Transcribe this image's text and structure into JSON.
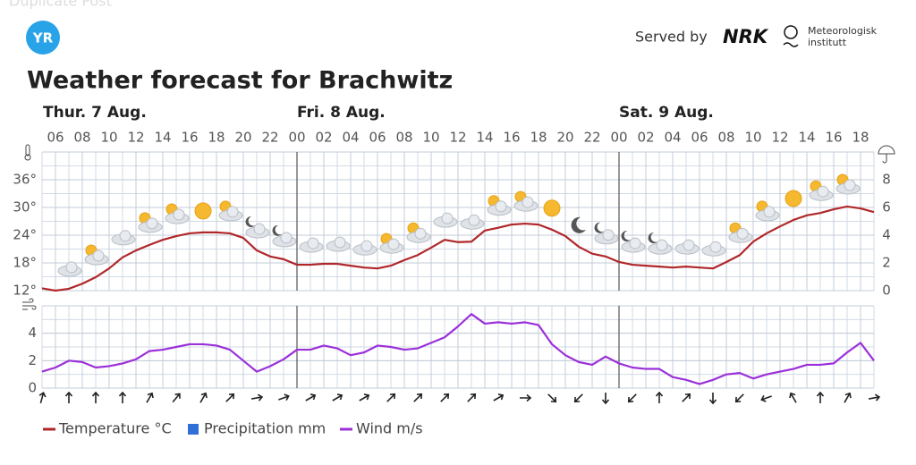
{
  "header": {
    "overlay": "Duplicate Post",
    "logo": "YR",
    "served_by": "Served by",
    "nrk": "NRK",
    "met_line1": "Meteorologisk",
    "met_line2": "institutt"
  },
  "chart_data": [
    {
      "type": "line",
      "title": "Weather forecast for Brachwitz",
      "days": [
        "Thur. 7 Aug.",
        "Fri. 8 Aug.",
        "Sat. 9 Aug."
      ],
      "day_starts": [
        24,
        48
      ],
      "x": [
        5,
        6,
        7,
        8,
        9,
        10,
        11,
        12,
        13,
        14,
        15,
        16,
        17,
        18,
        19,
        20,
        21,
        22,
        23,
        24,
        25,
        26,
        27,
        28,
        29,
        30,
        31,
        32,
        33,
        34,
        35,
        36,
        37,
        38,
        39,
        40,
        41,
        42,
        43,
        44,
        45,
        46,
        47,
        48,
        49,
        50,
        51,
        52,
        53,
        54,
        55,
        56,
        57,
        58,
        59,
        60,
        61,
        62,
        63,
        64,
        65,
        66,
        67
      ],
      "xlim": [
        5,
        67
      ],
      "xticks": [
        {
          "value": 6,
          "label": "06"
        },
        {
          "value": 8,
          "label": "08"
        },
        10,
        12,
        14,
        16,
        18,
        20,
        22,
        {
          "value": 24,
          "label": "00"
        },
        {
          "value": 26,
          "label": "02"
        },
        {
          "value": 28,
          "label": "04"
        },
        {
          "value": 30,
          "label": "06"
        },
        {
          "value": 32,
          "label": "08"
        },
        {
          "value": 34,
          "label": "10"
        },
        {
          "value": 36,
          "label": "12"
        },
        {
          "value": 38,
          "label": "14"
        },
        {
          "value": 40,
          "label": "16"
        },
        {
          "value": 42,
          "label": "18"
        },
        {
          "value": 44,
          "label": "20"
        },
        {
          "value": 46,
          "label": "22"
        },
        {
          "value": 48,
          "label": "00"
        },
        {
          "value": 50,
          "label": "02"
        },
        {
          "value": 52,
          "label": "04"
        },
        {
          "value": 54,
          "label": "06"
        },
        {
          "value": 56,
          "label": "08"
        },
        {
          "value": 58,
          "label": "10"
        },
        {
          "value": 60,
          "label": "12"
        },
        {
          "value": 62,
          "label": "14"
        },
        {
          "value": 64,
          "label": "16"
        },
        {
          "value": 66,
          "label": "18"
        }
      ],
      "ylim": [
        12,
        42
      ],
      "yticks": [
        {
          "value": 12,
          "label": "12°"
        },
        {
          "value": 18,
          "label": "18°"
        },
        {
          "value": 24,
          "label": "24°"
        },
        {
          "value": 30,
          "label": "30°"
        },
        {
          "value": 36,
          "label": "36°"
        }
      ],
      "y2lim": [
        0,
        10
      ],
      "y2ticks": [
        0,
        2,
        4,
        6,
        8
      ],
      "grid": true,
      "series": [
        {
          "name": "Temperature °C",
          "color": "#b0272a",
          "values": [
            12.5,
            12.0,
            12.4,
            13.5,
            14.9,
            16.8,
            19.2,
            20.7,
            21.9,
            23.0,
            23.8,
            24.4,
            24.6,
            24.6,
            24.4,
            23.4,
            20.7,
            19.4,
            18.8,
            17.6,
            17.6,
            17.8,
            17.8,
            17.4,
            17.0,
            16.8,
            17.4,
            18.6,
            19.7,
            21.3,
            23.0,
            22.5,
            22.6,
            25.0,
            25.6,
            26.3,
            26.5,
            26.3,
            25.2,
            23.8,
            21.5,
            20.0,
            19.4,
            18.2,
            17.6,
            17.4,
            17.2,
            17.0,
            17.2,
            17.0,
            16.8,
            18.2,
            19.7,
            22.6,
            24.4,
            25.9,
            27.3,
            28.3,
            28.8,
            29.6,
            30.2,
            29.8,
            29.0
          ]
        },
        {
          "name": "Precipitation mm",
          "color": "#2f6fd6",
          "axis": "y2",
          "values": [
            0,
            0,
            0,
            0,
            0,
            0,
            0,
            0,
            0,
            0,
            0,
            0,
            0,
            0,
            0,
            0,
            0,
            0,
            0,
            0,
            0,
            0,
            0,
            0,
            0,
            0,
            0,
            0,
            0,
            0,
            0,
            0,
            0,
            0,
            0,
            0,
            0,
            0,
            0,
            0,
            0,
            0,
            0,
            0,
            0,
            0,
            0,
            0,
            0,
            0,
            0,
            0,
            0,
            0,
            0,
            0,
            0,
            0,
            0,
            0,
            0,
            0,
            0
          ]
        }
      ],
      "weather_symbols": [
        "cloudy",
        "partlycloudy_day",
        "cloudy",
        "partlycloudy_day",
        "partlycloudy_day",
        "clearsky_day",
        "partlycloudy_day",
        "partlycloudy_night",
        "partlycloudy_night",
        "cloudy",
        "cloudy",
        "cloudy",
        "partlycloudy_day",
        "partlycloudy_day",
        "cloudy",
        "cloudy",
        "partlycloudy_day",
        "partlycloudy_day",
        "clearsky_day",
        "clearsky_night",
        "partlycloudy_night",
        "partlycloudy_night",
        "partlycloudy_night",
        "cloudy",
        "cloudy",
        "partlycloudy_day",
        "partlycloudy_day",
        "clearsky_day",
        "partlycloudy_day",
        "partlycloudy_day"
      ]
    },
    {
      "type": "line",
      "x": [
        5,
        6,
        7,
        8,
        9,
        10,
        11,
        12,
        13,
        14,
        15,
        16,
        17,
        18,
        19,
        20,
        21,
        22,
        23,
        24,
        25,
        26,
        27,
        28,
        29,
        30,
        31,
        32,
        33,
        34,
        35,
        36,
        37,
        38,
        39,
        40,
        41,
        42,
        43,
        44,
        45,
        46,
        47,
        48,
        49,
        50,
        51,
        52,
        53,
        54,
        55,
        56,
        57,
        58,
        59,
        60,
        61,
        62,
        63,
        64,
        65,
        66,
        67
      ],
      "xlim": [
        5,
        67
      ],
      "ylim": [
        0,
        6
      ],
      "yticks": [
        0,
        2,
        4
      ],
      "grid": true,
      "series": [
        {
          "name": "Wind m/s",
          "color": "#9b30d9",
          "values": [
            1.2,
            1.5,
            2.0,
            1.9,
            1.5,
            1.6,
            1.8,
            2.1,
            2.7,
            2.8,
            3.0,
            3.2,
            3.2,
            3.1,
            2.8,
            2.0,
            1.2,
            1.6,
            2.1,
            2.8,
            2.8,
            3.1,
            2.9,
            2.4,
            2.6,
            3.1,
            3.0,
            2.8,
            2.9,
            3.3,
            3.7,
            4.5,
            5.4,
            4.7,
            4.8,
            4.7,
            4.8,
            4.6,
            3.2,
            2.4,
            1.9,
            1.7,
            2.3,
            1.8,
            1.5,
            1.4,
            1.4,
            0.8,
            0.6,
            0.3,
            0.6,
            1.0,
            1.1,
            0.7,
            1.0,
            1.2,
            1.4,
            1.7,
            1.7,
            1.8,
            2.6,
            3.3,
            2.0
          ]
        }
      ],
      "wind_direction": [
        15,
        0,
        0,
        0,
        30,
        40,
        30,
        45,
        80,
        70,
        60,
        60,
        60,
        45,
        45,
        45,
        45,
        60,
        90,
        135,
        225,
        180,
        225,
        0,
        45,
        180,
        225,
        250,
        330,
        0,
        30,
        80
      ]
    }
  ]
}
